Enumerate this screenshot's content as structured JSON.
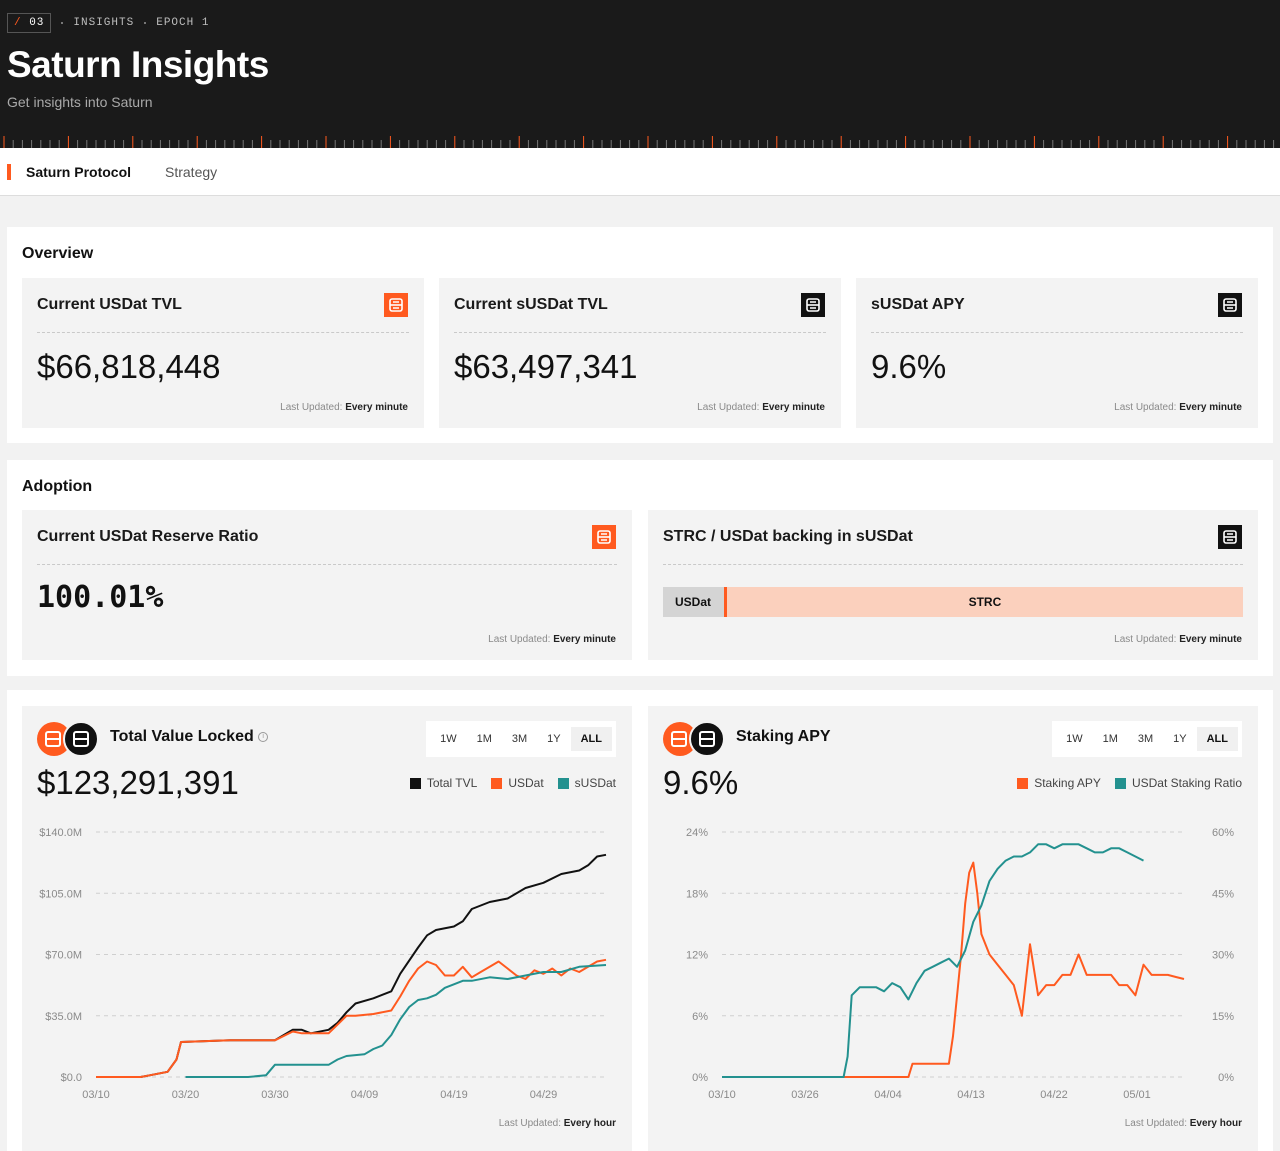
{
  "breadcrumb": {
    "num": "03",
    "insights": "INSIGHTS",
    "epoch": "EPOCH 1"
  },
  "header": {
    "title": "Saturn Insights",
    "subtitle": "Get insights into Saturn"
  },
  "tabs": [
    {
      "label": "Saturn Protocol"
    },
    {
      "label": "Strategy"
    }
  ],
  "overview": {
    "title": "Overview",
    "cards": [
      {
        "title": "Current USDat TVL",
        "value": "$66,818,448",
        "updated_label": "Last Updated:",
        "updated_value": "Every minute",
        "badge": "orange"
      },
      {
        "title": "Current sUSDat TVL",
        "value": "$63,497,341",
        "updated_label": "Last Updated:",
        "updated_value": "Every minute",
        "badge": "black"
      },
      {
        "title": "sUSDat APY",
        "value": "9.6%",
        "updated_label": "Last Updated:",
        "updated_value": "Every minute",
        "badge": "black"
      }
    ]
  },
  "adoption": {
    "title": "Adoption",
    "reserve": {
      "title": "Current USDat Reserve Ratio",
      "value": "100.01%",
      "updated_label": "Last Updated:",
      "updated_value": "Every minute"
    },
    "backing": {
      "title": "STRC / USDat backing in sUSDat",
      "usdat_label": "USDat",
      "strc_label": "STRC",
      "usdat_share": 0.11,
      "updated_label": "Last Updated:",
      "updated_value": "Every minute"
    }
  },
  "tvl_chart": {
    "title": "Total Value Locked",
    "value": "$123,291,391",
    "ranges": [
      "1W",
      "1M",
      "3M",
      "1Y",
      "ALL"
    ],
    "selected_range": "ALL",
    "legend": [
      "Total TVL",
      "USDat",
      "sUSDat"
    ],
    "updated_label": "Last Updated:",
    "updated_value": "Every hour"
  },
  "apy_chart": {
    "title": "Staking APY",
    "value": "9.6%",
    "ranges": [
      "1W",
      "1M",
      "3M",
      "1Y",
      "ALL"
    ],
    "selected_range": "ALL",
    "legend": [
      "Staking APY",
      "USDat Staking Ratio"
    ],
    "updated_label": "Last Updated:",
    "updated_value": "Every hour"
  },
  "colors": {
    "accent": "#ff5a1f",
    "teal": "#23918f",
    "black": "#111111"
  },
  "chart_data": [
    {
      "type": "line",
      "title": "Total Value Locked",
      "x_ticks": [
        "03/10",
        "03/20",
        "03/30",
        "04/09",
        "04/19",
        "04/29"
      ],
      "y_ticks": [
        "$0.0",
        "$35.0M",
        "$70.0M",
        "$105.0M",
        "$140.0M"
      ],
      "ylim": [
        0,
        140
      ],
      "x_range": [
        0,
        57
      ],
      "series": [
        {
          "name": "Total TVL",
          "color": "#111111",
          "points": [
            [
              0,
              0
            ],
            [
              5,
              0
            ],
            [
              6,
              1
            ],
            [
              8,
              3
            ],
            [
              9,
              10
            ],
            [
              9.5,
              20
            ],
            [
              15,
              21
            ],
            [
              20,
              21
            ],
            [
              22,
              27
            ],
            [
              23,
              27
            ],
            [
              24,
              25
            ],
            [
              26,
              27
            ],
            [
              27,
              31
            ],
            [
              28,
              37
            ],
            [
              29,
              42
            ],
            [
              31,
              45
            ],
            [
              33,
              49
            ],
            [
              34,
              59
            ],
            [
              36,
              74
            ],
            [
              37,
              81
            ],
            [
              38,
              84
            ],
            [
              40,
              86
            ],
            [
              41,
              89
            ],
            [
              42,
              96
            ],
            [
              44,
              100
            ],
            [
              46,
              102
            ],
            [
              48,
              108
            ],
            [
              50,
              111
            ],
            [
              52,
              116
            ],
            [
              54,
              118
            ],
            [
              55,
              121
            ],
            [
              56,
              126
            ],
            [
              57,
              127
            ]
          ]
        },
        {
          "name": "USDat",
          "color": "#ff5a1f",
          "points": [
            [
              0,
              0
            ],
            [
              5,
              0
            ],
            [
              6,
              1
            ],
            [
              8,
              3
            ],
            [
              9,
              10
            ],
            [
              9.5,
              20
            ],
            [
              15,
              21
            ],
            [
              20,
              21
            ],
            [
              22,
              26
            ],
            [
              23,
              25
            ],
            [
              26,
              25
            ],
            [
              27,
              30
            ],
            [
              28,
              35
            ],
            [
              29,
              35
            ],
            [
              31,
              36
            ],
            [
              33,
              38
            ],
            [
              34,
              46
            ],
            [
              35,
              55
            ],
            [
              36,
              62
            ],
            [
              37,
              66
            ],
            [
              38,
              64
            ],
            [
              39,
              58
            ],
            [
              40,
              58
            ],
            [
              41,
              63
            ],
            [
              42,
              57
            ],
            [
              43,
              60
            ],
            [
              44,
              63
            ],
            [
              45,
              66
            ],
            [
              46,
              62
            ],
            [
              47,
              58
            ],
            [
              48,
              56
            ],
            [
              49,
              61
            ],
            [
              50,
              59
            ],
            [
              51,
              62
            ],
            [
              52,
              58
            ],
            [
              53,
              62
            ],
            [
              54,
              60
            ],
            [
              55,
              63
            ],
            [
              56,
              66
            ],
            [
              57,
              67
            ]
          ]
        },
        {
          "name": "sUSDat",
          "color": "#23918f",
          "points": [
            [
              10,
              0
            ],
            [
              17,
              0
            ],
            [
              19,
              1
            ],
            [
              20,
              7
            ],
            [
              26,
              7
            ],
            [
              27,
              10
            ],
            [
              28,
              12
            ],
            [
              30,
              13
            ],
            [
              31,
              16
            ],
            [
              32,
              18
            ],
            [
              33,
              24
            ],
            [
              34,
              33
            ],
            [
              35,
              40
            ],
            [
              36,
              44
            ],
            [
              37,
              45
            ],
            [
              38,
              47
            ],
            [
              39,
              51
            ],
            [
              40,
              53
            ],
            [
              41,
              55
            ],
            [
              42,
              55
            ],
            [
              44,
              57
            ],
            [
              46,
              56
            ],
            [
              48,
              58
            ],
            [
              50,
              60
            ],
            [
              52,
              60
            ],
            [
              54,
              63
            ],
            [
              57,
              64
            ]
          ]
        }
      ]
    },
    {
      "type": "line",
      "title": "Staking APY",
      "x_ticks": [
        "03/10",
        "03/26",
        "04/04",
        "04/13",
        "04/22",
        "05/01"
      ],
      "y_ticks_left": [
        "0%",
        "6%",
        "12%",
        "18%",
        "24%"
      ],
      "y_ticks_right": [
        "0%",
        "15%",
        "30%",
        "45%",
        "60%"
      ],
      "ylim_left": [
        0,
        24
      ],
      "ylim_right": [
        0,
        60
      ],
      "x_range": [
        0,
        57
      ],
      "series": [
        {
          "name": "Staking APY",
          "color": "#ff5a1f",
          "axis": "left",
          "points": [
            [
              0,
              0
            ],
            [
              23,
              0
            ],
            [
              23.5,
              1.3
            ],
            [
              28,
              1.3
            ],
            [
              28.5,
              4
            ],
            [
              29,
              8
            ],
            [
              29.5,
              12
            ],
            [
              30,
              17
            ],
            [
              30.5,
              20
            ],
            [
              31,
              21
            ],
            [
              31.5,
              18
            ],
            [
              32,
              14
            ],
            [
              33,
              12
            ],
            [
              34,
              11
            ],
            [
              35,
              10
            ],
            [
              36,
              9
            ],
            [
              37,
              6
            ],
            [
              38,
              13
            ],
            [
              39,
              8
            ],
            [
              40,
              9
            ],
            [
              41,
              9
            ],
            [
              42,
              10
            ],
            [
              43,
              10
            ],
            [
              44,
              12
            ],
            [
              45,
              10
            ],
            [
              46,
              10
            ],
            [
              47,
              10
            ],
            [
              48,
              10
            ],
            [
              49,
              9
            ],
            [
              50,
              9
            ],
            [
              51,
              8
            ],
            [
              52,
              11
            ],
            [
              53,
              10
            ],
            [
              54,
              10
            ],
            [
              55,
              10
            ],
            [
              56,
              9.8
            ],
            [
              57,
              9.6
            ]
          ]
        },
        {
          "name": "USDat Staking Ratio",
          "color": "#23918f",
          "axis": "right",
          "points": [
            [
              0,
              0
            ],
            [
              14,
              0
            ],
            [
              15,
              0
            ],
            [
              15.5,
              5
            ],
            [
              16,
              20
            ],
            [
              17,
              22
            ],
            [
              18,
              22
            ],
            [
              19,
              22
            ],
            [
              20,
              21
            ],
            [
              21,
              23
            ],
            [
              22,
              22
            ],
            [
              23,
              19
            ],
            [
              24,
              23
            ],
            [
              25,
              26
            ],
            [
              26,
              27
            ],
            [
              27,
              28
            ],
            [
              28,
              29
            ],
            [
              29,
              27
            ],
            [
              30,
              31
            ],
            [
              31,
              38
            ],
            [
              32,
              42
            ],
            [
              33,
              48
            ],
            [
              34,
              51
            ],
            [
              35,
              53
            ],
            [
              36,
              54
            ],
            [
              37,
              54
            ],
            [
              38,
              55
            ],
            [
              39,
              57
            ],
            [
              40,
              57
            ],
            [
              41,
              56
            ],
            [
              42,
              57
            ],
            [
              43,
              57
            ],
            [
              44,
              57
            ],
            [
              45,
              56
            ],
            [
              46,
              55
            ],
            [
              47,
              55
            ],
            [
              48,
              56
            ],
            [
              49,
              56
            ],
            [
              50,
              55
            ],
            [
              51,
              54
            ],
            [
              52,
              53
            ]
          ]
        }
      ]
    }
  ]
}
